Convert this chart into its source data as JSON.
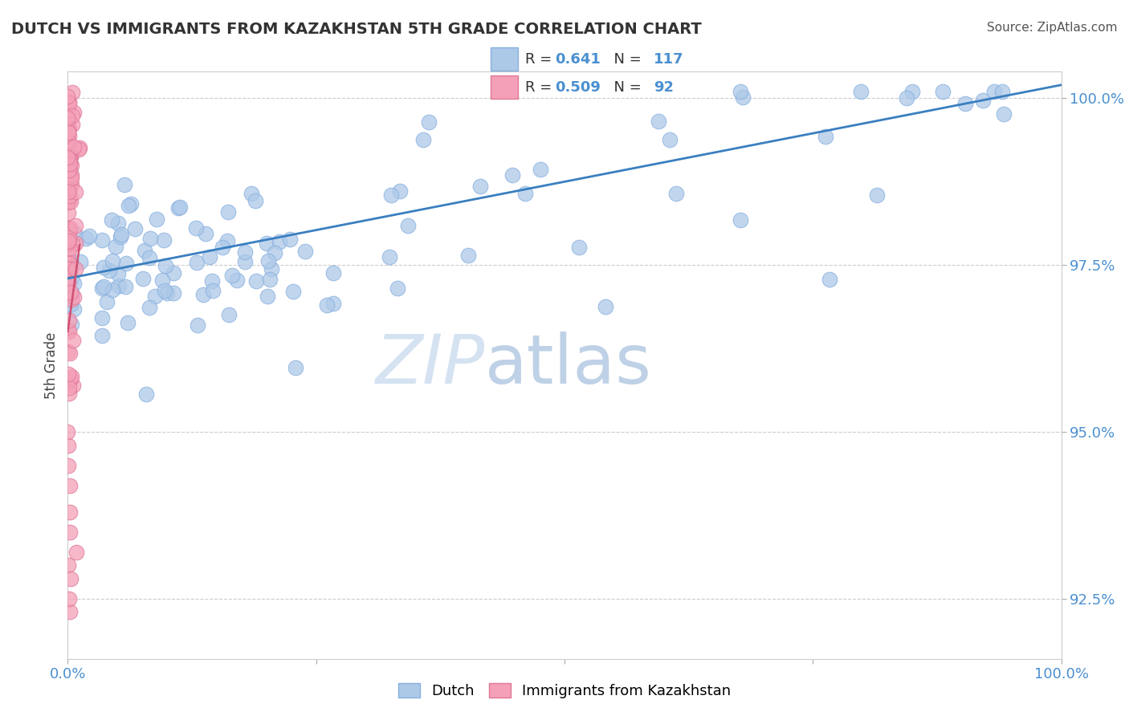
{
  "title": "DUTCH VS IMMIGRANTS FROM KAZAKHSTAN 5TH GRADE CORRELATION CHART",
  "source": "Source: ZipAtlas.com",
  "ylabel": "5th Grade",
  "xlim": [
    0.0,
    1.0
  ],
  "ylim": [
    0.916,
    1.004
  ],
  "yticks": [
    0.925,
    0.95,
    0.975,
    1.0
  ],
  "ytick_labels": [
    "92.5%",
    "95.0%",
    "97.5%",
    "100.0%"
  ],
  "xticks": [
    0.0,
    0.25,
    0.5,
    0.75,
    1.0
  ],
  "xtick_labels": [
    "0.0%",
    "",
    "",
    "",
    "100.0%"
  ],
  "dutch_color": "#adc9e8",
  "dutch_edge_color": "#88afe0",
  "kazakh_color": "#f4a0b8",
  "kazakh_edge_color": "#e07898",
  "trendline_dutch_color": "#3a7fc0",
  "trendline_kazakh_color": "#d05070",
  "R_dutch": 0.641,
  "N_dutch": 117,
  "R_kazakh": 0.509,
  "N_kazakh": 92,
  "background_color": "#ffffff",
  "legend_dutch": "Dutch",
  "legend_kazakh": "Immigrants from Kazakhstan",
  "watermark_zip": "ZIP",
  "watermark_atlas": "atlas",
  "watermark_zip_color": "#d0dff0",
  "watermark_atlas_color": "#b8cce4"
}
